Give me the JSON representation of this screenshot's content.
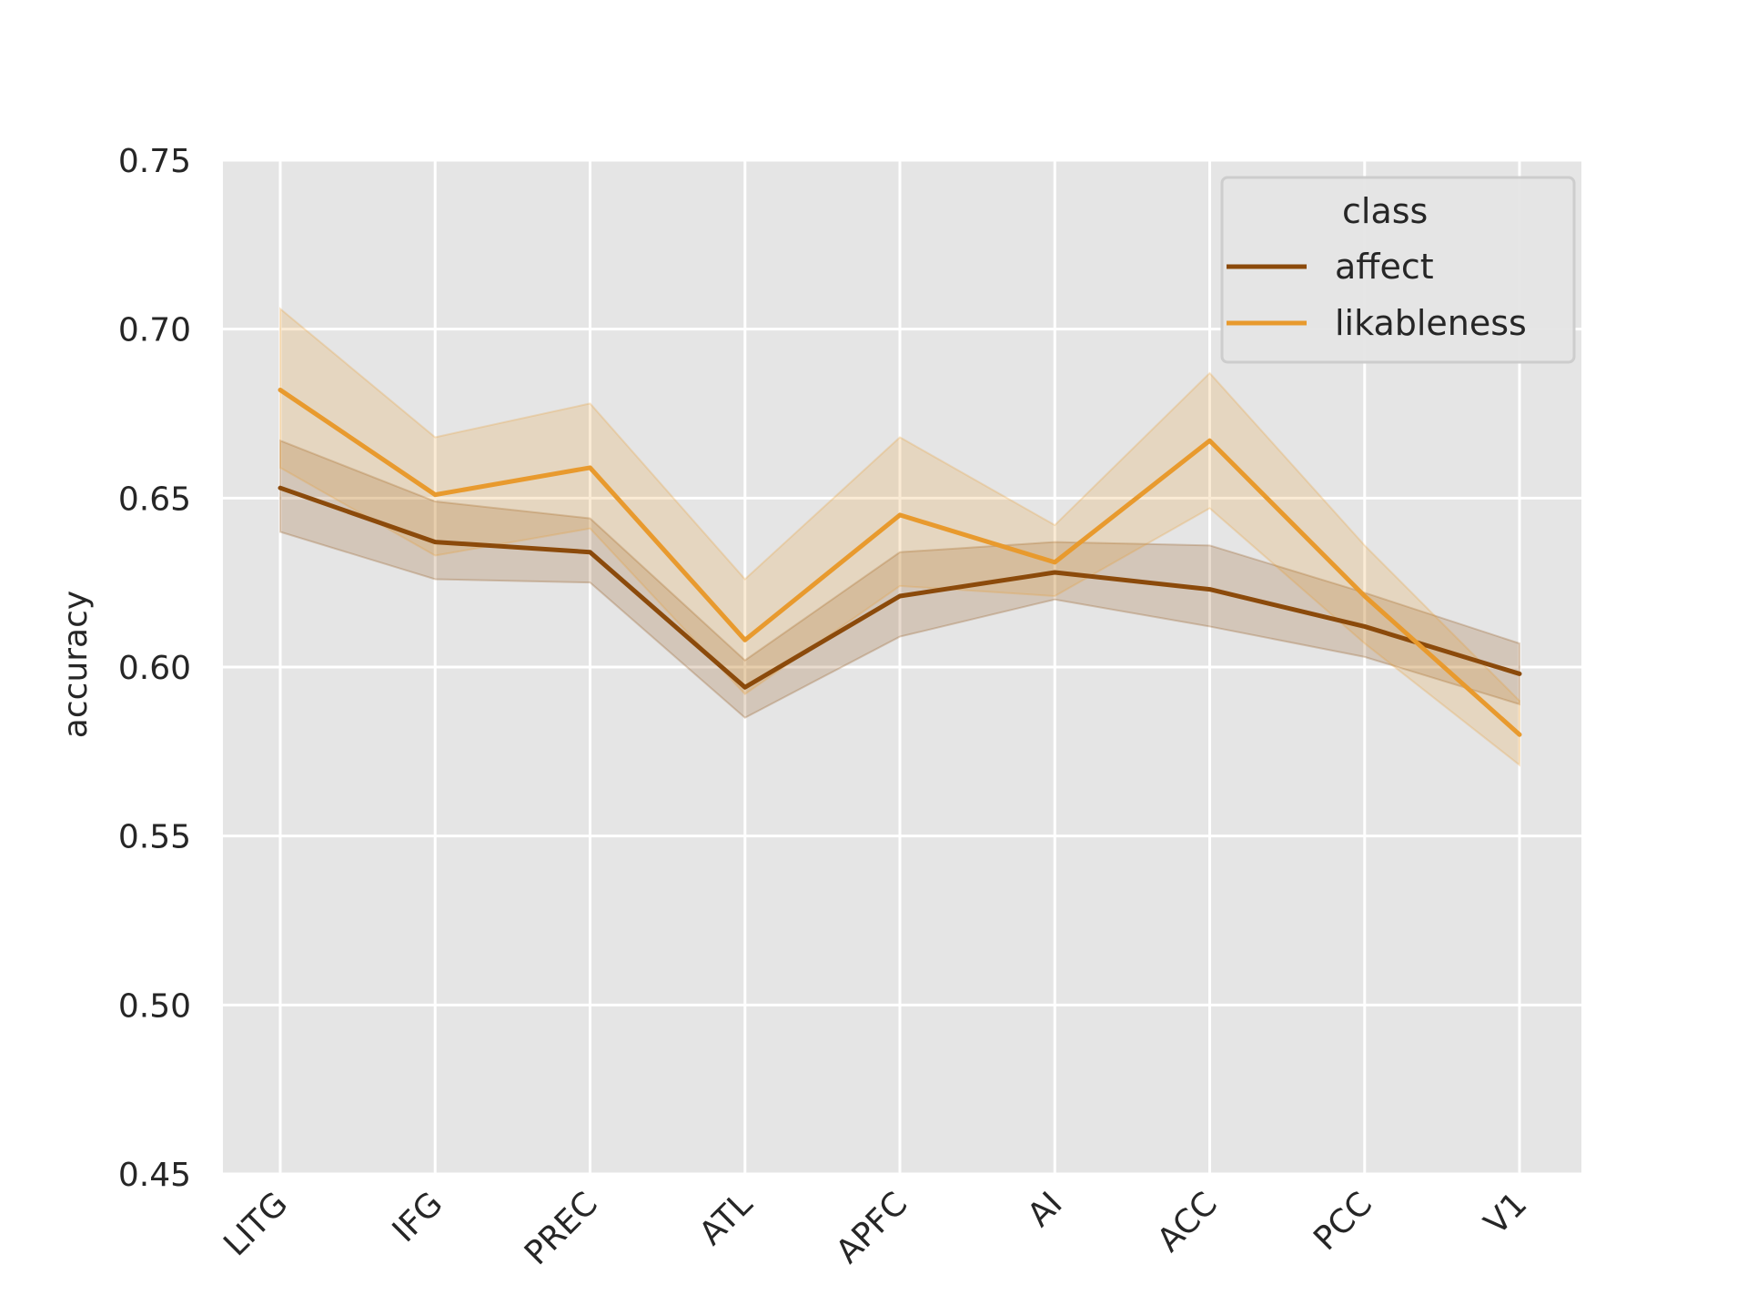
{
  "chart_data": {
    "type": "line",
    "title": "",
    "xlabel": "",
    "ylabel": "accuracy",
    "ylim": [
      0.45,
      0.75
    ],
    "yticks": [
      "0.45",
      "0.50",
      "0.55",
      "0.60",
      "0.65",
      "0.70",
      "0.75"
    ],
    "categories": [
      "LITG",
      "IFG",
      "PREC",
      "ATL",
      "APFC",
      "AI",
      "ACC",
      "PCC",
      "V1"
    ],
    "grid": true,
    "legend": {
      "title": "class",
      "position": "top-right"
    },
    "series": [
      {
        "name": "affect",
        "color": "#8B4A0B",
        "values": [
          0.653,
          0.637,
          0.634,
          0.594,
          0.621,
          0.628,
          0.623,
          0.612,
          0.598
        ],
        "ci_low": [
          0.64,
          0.626,
          0.625,
          0.585,
          0.609,
          0.62,
          0.612,
          0.603,
          0.589
        ],
        "ci_high": [
          0.667,
          0.649,
          0.644,
          0.602,
          0.634,
          0.637,
          0.636,
          0.622,
          0.607
        ]
      },
      {
        "name": "likableness",
        "color": "#E89A2E",
        "values": [
          0.682,
          0.651,
          0.659,
          0.608,
          0.645,
          0.631,
          0.667,
          0.621,
          0.58
        ],
        "ci_low": [
          0.659,
          0.633,
          0.641,
          0.592,
          0.624,
          0.621,
          0.647,
          0.607,
          0.571
        ],
        "ci_high": [
          0.706,
          0.668,
          0.678,
          0.626,
          0.668,
          0.642,
          0.687,
          0.636,
          0.59
        ]
      }
    ]
  }
}
